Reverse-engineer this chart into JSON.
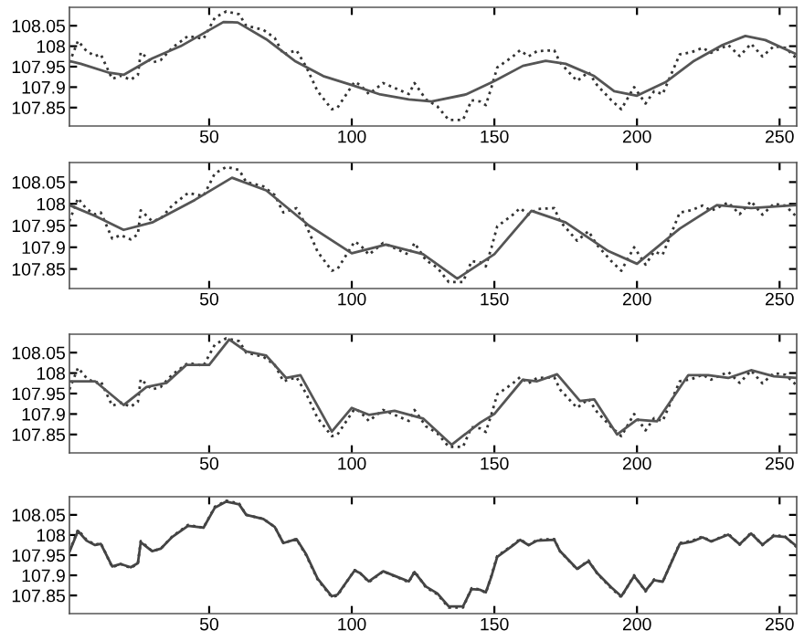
{
  "chart_data": [
    {
      "type": "line",
      "xlim": [
        1,
        256
      ],
      "ylim": [
        107.805,
        108.095
      ],
      "xticks": [
        50,
        100,
        150,
        200,
        250
      ],
      "yticks": [
        107.85,
        107.9,
        107.95,
        108,
        108.05
      ],
      "series": [
        {
          "color": "#333333",
          "line_style": "dotted",
          "x": [
            1,
            4,
            7,
            10,
            12,
            16,
            19,
            22.5,
            25,
            26,
            30,
            33,
            37,
            42.6,
            48,
            52,
            56,
            60.5,
            63,
            69,
            73,
            76,
            80.6,
            84,
            88,
            93,
            95,
            101,
            103,
            106,
            111,
            116,
            120,
            122,
            126,
            130,
            134,
            139,
            142,
            145,
            147,
            149,
            151,
            156.5,
            159,
            162,
            165,
            171,
            173,
            179,
            183,
            186,
            191,
            194.5,
            199,
            203,
            206,
            209,
            215,
            219,
            223,
            226,
            232,
            236,
            240,
            244,
            248,
            252,
            256
          ],
          "values": [
            107.96,
            108.013,
            107.988,
            107.976,
            107.98,
            107.92,
            107.928,
            107.918,
            107.93,
            107.985,
            107.96,
            107.966,
            107.996,
            108.025,
            108.018,
            108.07,
            108.085,
            108.078,
            108.05,
            108.04,
            108.02,
            107.98,
            107.99,
            107.95,
            107.89,
            107.846,
            107.85,
            107.913,
            107.905,
            107.883,
            107.91,
            107.895,
            107.883,
            107.91,
            107.87,
            107.853,
            107.82,
            107.82,
            107.868,
            107.865,
            107.856,
            107.9,
            107.948,
            107.975,
            107.99,
            107.975,
            107.988,
            107.99,
            107.96,
            107.915,
            107.937,
            107.905,
            107.868,
            107.846,
            107.9,
            107.86,
            107.89,
            107.883,
            107.98,
            107.985,
            107.996,
            107.984,
            108.003,
            107.976,
            108.006,
            107.975,
            108.0,
            107.996,
            107.97
          ]
        },
        {
          "color": "#555555",
          "line_style": "solid",
          "x": [
            1,
            5,
            15,
            20,
            30,
            40,
            55,
            60,
            70,
            80,
            90,
            100,
            110,
            120,
            128,
            140,
            150,
            160,
            168,
            175,
            185,
            192,
            200,
            210,
            220,
            230,
            238,
            245,
            256
          ],
          "values": [
            107.964,
            107.957,
            107.935,
            107.93,
            107.97,
            108.0,
            108.059,
            108.058,
            108.017,
            107.964,
            107.927,
            107.905,
            107.882,
            107.87,
            107.865,
            107.882,
            107.915,
            107.952,
            107.964,
            107.957,
            107.927,
            107.89,
            107.879,
            107.912,
            107.964,
            108.003,
            108.025,
            108.015,
            107.98
          ]
        }
      ]
    },
    {
      "type": "line",
      "xlim": [
        1,
        256
      ],
      "ylim": [
        107.805,
        108.095
      ],
      "xticks": [
        50,
        100,
        150,
        200,
        250
      ],
      "yticks": [
        107.85,
        107.9,
        107.95,
        108,
        108.05
      ],
      "series": [
        {
          "color": "#333333",
          "line_style": "dotted",
          "x": [
            1,
            4,
            7,
            10,
            12,
            16,
            19,
            22.5,
            25,
            26,
            30,
            33,
            37,
            42.6,
            48,
            52,
            56,
            60.5,
            63,
            69,
            73,
            76,
            80.6,
            84,
            88,
            93,
            95,
            101,
            103,
            106,
            111,
            116,
            120,
            122,
            126,
            130,
            134,
            139,
            142,
            145,
            147,
            149,
            151,
            156.5,
            159,
            162,
            165,
            171,
            173,
            179,
            183,
            186,
            191,
            194.5,
            199,
            203,
            206,
            209,
            215,
            219,
            223,
            226,
            232,
            236,
            240,
            244,
            248,
            252,
            256
          ],
          "values": [
            107.96,
            108.013,
            107.988,
            107.976,
            107.98,
            107.92,
            107.928,
            107.918,
            107.93,
            107.985,
            107.96,
            107.966,
            107.996,
            108.025,
            108.018,
            108.07,
            108.085,
            108.078,
            108.05,
            108.04,
            108.02,
            107.98,
            107.99,
            107.95,
            107.89,
            107.846,
            107.85,
            107.913,
            107.905,
            107.883,
            107.91,
            107.895,
            107.883,
            107.91,
            107.87,
            107.853,
            107.82,
            107.82,
            107.868,
            107.865,
            107.856,
            107.9,
            107.948,
            107.975,
            107.99,
            107.975,
            107.988,
            107.99,
            107.96,
            107.915,
            107.937,
            107.905,
            107.868,
            107.846,
            107.9,
            107.86,
            107.89,
            107.883,
            107.98,
            107.985,
            107.996,
            107.984,
            108.003,
            107.976,
            108.006,
            107.975,
            108.0,
            107.996,
            107.97
          ]
        },
        {
          "color": "#555555",
          "line_style": "solid",
          "x": [
            1,
            10,
            20,
            30,
            45,
            58,
            70,
            85,
            100,
            112,
            125,
            137,
            150,
            163,
            175,
            190,
            200,
            215,
            228,
            240,
            256
          ],
          "values": [
            107.997,
            107.972,
            107.94,
            107.957,
            108.009,
            108.06,
            108.031,
            107.95,
            107.886,
            107.906,
            107.884,
            107.828,
            107.884,
            107.984,
            107.957,
            107.891,
            107.862,
            107.943,
            107.997,
            107.99,
            107.997
          ]
        }
      ]
    },
    {
      "type": "line",
      "xlim": [
        1,
        256
      ],
      "ylim": [
        107.805,
        108.095
      ],
      "xticks": [
        50,
        100,
        150,
        200,
        250
      ],
      "yticks": [
        107.85,
        107.9,
        107.95,
        108,
        108.05
      ],
      "series": [
        {
          "color": "#333333",
          "line_style": "dotted",
          "x": [
            1,
            4,
            7,
            10,
            12,
            16,
            19,
            22.5,
            25,
            26,
            30,
            33,
            37,
            42.6,
            48,
            52,
            56,
            60.5,
            63,
            69,
            73,
            76,
            80.6,
            84,
            88,
            93,
            95,
            101,
            103,
            106,
            111,
            116,
            120,
            122,
            126,
            130,
            134,
            139,
            142,
            145,
            147,
            149,
            151,
            156.5,
            159,
            162,
            165,
            171,
            173,
            179,
            183,
            186,
            191,
            194.5,
            199,
            203,
            206,
            209,
            215,
            219,
            223,
            226,
            232,
            236,
            240,
            244,
            248,
            252,
            256
          ],
          "values": [
            107.96,
            108.013,
            107.988,
            107.976,
            107.98,
            107.92,
            107.928,
            107.918,
            107.93,
            107.985,
            107.96,
            107.966,
            107.996,
            108.025,
            108.018,
            108.07,
            108.085,
            108.078,
            108.05,
            108.04,
            108.02,
            107.98,
            107.99,
            107.95,
            107.89,
            107.846,
            107.85,
            107.913,
            107.905,
            107.883,
            107.91,
            107.895,
            107.883,
            107.91,
            107.87,
            107.853,
            107.82,
            107.82,
            107.868,
            107.865,
            107.856,
            107.9,
            107.948,
            107.975,
            107.99,
            107.975,
            107.988,
            107.99,
            107.96,
            107.915,
            107.937,
            107.905,
            107.868,
            107.846,
            107.9,
            107.86,
            107.89,
            107.883,
            107.98,
            107.985,
            107.996,
            107.984,
            108.003,
            107.976,
            108.006,
            107.975,
            108.0,
            107.996,
            107.97
          ]
        },
        {
          "color": "#555555",
          "line_style": "solid",
          "x": [
            1,
            10,
            20,
            28,
            35,
            42,
            50,
            57,
            63,
            70,
            77,
            82,
            93,
            100,
            106,
            115,
            125,
            135,
            145,
            150,
            160,
            165,
            172,
            180,
            185,
            193,
            200,
            207,
            218,
            225,
            232,
            240,
            248,
            256
          ],
          "values": [
            107.98,
            107.98,
            107.922,
            107.966,
            107.976,
            108.02,
            108.02,
            108.082,
            108.053,
            108.043,
            107.988,
            107.995,
            107.857,
            107.915,
            107.898,
            107.908,
            107.889,
            107.825,
            107.879,
            107.9,
            107.984,
            107.98,
            107.997,
            107.932,
            107.936,
            107.85,
            107.886,
            107.882,
            107.995,
            107.995,
            107.988,
            108.007,
            107.992,
            107.988
          ]
        }
      ]
    },
    {
      "type": "line",
      "xlim": [
        1,
        256
      ],
      "ylim": [
        107.805,
        108.095
      ],
      "xticks": [
        50,
        100,
        150,
        200,
        250
      ],
      "yticks": [
        107.85,
        107.9,
        107.95,
        108,
        108.05
      ],
      "series": [
        {
          "color": "#333333",
          "line_style": "dotted",
          "x": [
            1,
            4,
            7,
            10,
            12,
            16,
            19,
            22.5,
            25,
            26,
            30,
            33,
            37,
            42.6,
            48,
            52,
            56,
            60.5,
            63,
            69,
            73,
            76,
            80.6,
            84,
            88,
            93,
            95,
            101,
            103,
            106,
            111,
            116,
            120,
            122,
            126,
            130,
            134,
            139,
            142,
            145,
            147,
            149,
            151,
            156.5,
            159,
            162,
            165,
            171,
            173,
            179,
            183,
            186,
            191,
            194.5,
            199,
            203,
            206,
            209,
            215,
            219,
            223,
            226,
            232,
            236,
            240,
            244,
            248,
            252,
            256
          ],
          "values": [
            107.96,
            108.013,
            107.988,
            107.976,
            107.98,
            107.92,
            107.928,
            107.918,
            107.93,
            107.985,
            107.96,
            107.966,
            107.996,
            108.025,
            108.018,
            108.07,
            108.085,
            108.078,
            108.05,
            108.04,
            108.02,
            107.98,
            107.99,
            107.95,
            107.89,
            107.846,
            107.85,
            107.913,
            107.905,
            107.883,
            107.91,
            107.895,
            107.883,
            107.91,
            107.87,
            107.853,
            107.82,
            107.82,
            107.868,
            107.865,
            107.856,
            107.9,
            107.948,
            107.975,
            107.99,
            107.975,
            107.988,
            107.99,
            107.96,
            107.915,
            107.937,
            107.905,
            107.868,
            107.846,
            107.9,
            107.86,
            107.89,
            107.883,
            107.98,
            107.985,
            107.996,
            107.984,
            108.003,
            107.976,
            108.006,
            107.975,
            108.0,
            107.996,
            107.97
          ]
        },
        {
          "color": "#444444",
          "line_style": "solid",
          "x": [
            1,
            4,
            7,
            10,
            12,
            16,
            19,
            22.5,
            25,
            26,
            30,
            33,
            37,
            42.6,
            48,
            52,
            56,
            60.5,
            63,
            69,
            73,
            76,
            80.6,
            84,
            88,
            93,
            95,
            101,
            103,
            106,
            111,
            116,
            120,
            122,
            126,
            130,
            134,
            139,
            142,
            145,
            147,
            149,
            151,
            156.5,
            159,
            162,
            165,
            171,
            173,
            179,
            183,
            186,
            191,
            194.5,
            199,
            203,
            206,
            209,
            215,
            219,
            223,
            226,
            232,
            236,
            240,
            244,
            248,
            252,
            256
          ],
          "values": [
            107.958,
            108.01,
            107.986,
            107.975,
            107.978,
            107.922,
            107.928,
            107.92,
            107.93,
            107.982,
            107.96,
            107.966,
            107.995,
            108.023,
            108.018,
            108.068,
            108.083,
            108.076,
            108.05,
            108.04,
            108.02,
            107.98,
            107.99,
            107.952,
            107.892,
            107.848,
            107.852,
            107.912,
            107.905,
            107.885,
            107.91,
            107.896,
            107.885,
            107.908,
            107.872,
            107.855,
            107.823,
            107.823,
            107.866,
            107.864,
            107.858,
            107.898,
            107.946,
            107.974,
            107.988,
            107.975,
            107.986,
            107.988,
            107.96,
            107.916,
            107.935,
            107.906,
            107.87,
            107.848,
            107.898,
            107.862,
            107.888,
            107.884,
            107.978,
            107.983,
            107.994,
            107.984,
            108.001,
            107.977,
            108.004,
            107.976,
            107.998,
            107.995,
            107.972
          ]
        }
      ]
    }
  ]
}
